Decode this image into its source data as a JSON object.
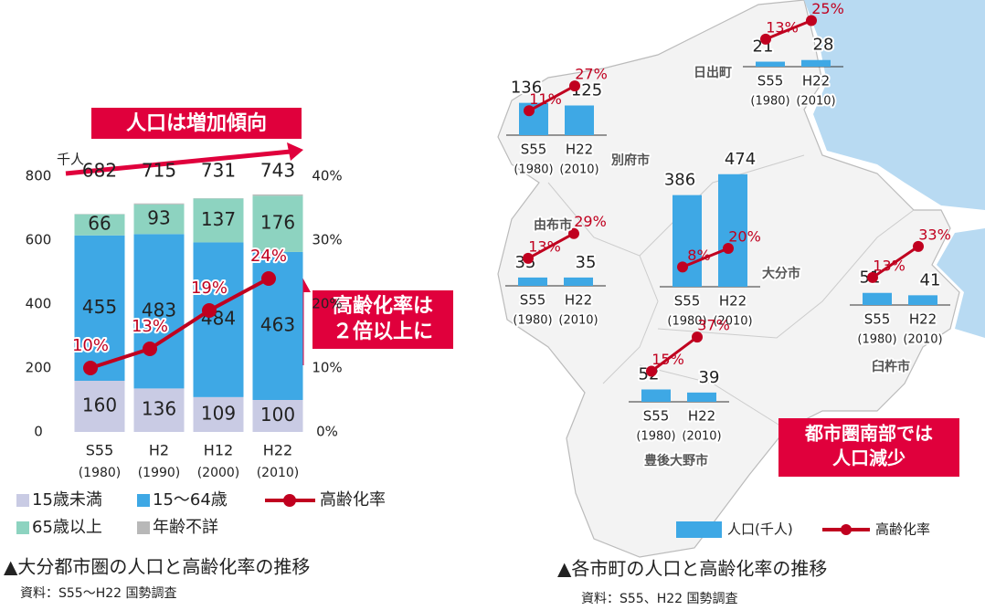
{
  "chart_data": [
    {
      "type": "bar",
      "unit_label": "千人",
      "categories": [
        "S55",
        "H2",
        "H12",
        "H22"
      ],
      "category_years": [
        "(1980)",
        "(1990)",
        "(2000)",
        "(2010)"
      ],
      "series": [
        {
          "name": "15歳未満",
          "color": "#c9cbe4",
          "values": [
            160,
            136,
            109,
            100
          ],
          "show_labels": true
        },
        {
          "name": "15〜64歳",
          "color": "#3ea8e5",
          "values": [
            455,
            483,
            484,
            463
          ],
          "show_labels": true
        },
        {
          "name": "65歳以上",
          "color": "#8dd3c0",
          "values": [
            66,
            93,
            137,
            176
          ],
          "show_labels": true
        },
        {
          "name": "年齢不詳",
          "color": "#b8b8b8",
          "values": [
            1,
            3,
            1,
            4
          ],
          "show_labels": false
        },
        {
          "name": "高齢化率",
          "color": "#c0001f",
          "type": "line",
          "axis": "y2",
          "values": [
            10,
            13,
            19,
            24
          ],
          "value_labels": [
            "10%",
            "13%",
            "19%",
            "24%"
          ]
        }
      ],
      "totals": [
        682,
        715,
        731,
        743
      ],
      "ylim": [
        0,
        800
      ],
      "yticks": [
        0,
        200,
        400,
        600,
        800
      ],
      "y2lim": [
        0,
        40
      ],
      "y2ticks": [
        {
          "value": 0,
          "label": "0%"
        },
        {
          "value": 10,
          "label": "10%"
        },
        {
          "value": 20,
          "label": "20%"
        },
        {
          "value": 30,
          "label": "30%"
        },
        {
          "value": 40,
          "label": "40%"
        }
      ],
      "annotations": [
        "人口は増加傾向",
        "高齢化率は",
        "２倍以上に"
      ],
      "caption": "▲大分都市圏の人口と高齢化率の推移",
      "source": "資料：S55〜H22 国勢調査"
    },
    {
      "type": "map",
      "periods": [
        "S55",
        "H22"
      ],
      "years": [
        "(1980)",
        "(2010)"
      ],
      "bar_color": "#3ea8e5",
      "line_color": "#c0001f",
      "towns": [
        {
          "name": "日出町",
          "population": [
            21,
            28
          ],
          "rate": [
            13,
            25
          ],
          "rate_labels": [
            "13%",
            "25%"
          ]
        },
        {
          "name": "別府市",
          "population": [
            136,
            125
          ],
          "rate": [
            11,
            27
          ],
          "rate_labels": [
            "11%",
            "27%"
          ]
        },
        {
          "name": "由布市",
          "population": [
            35,
            35
          ],
          "rate": [
            13,
            29
          ],
          "rate_labels": [
            "13%",
            "29%"
          ]
        },
        {
          "name": "大分市",
          "population": [
            386,
            474
          ],
          "rate": [
            8,
            20
          ],
          "rate_labels": [
            "8%",
            "20%"
          ]
        },
        {
          "name": "臼杵市",
          "population": [
            51,
            41
          ],
          "rate": [
            13,
            33
          ],
          "rate_labels": [
            "13%",
            "33%"
          ]
        },
        {
          "name": "豊後大野市",
          "population": [
            52,
            39
          ],
          "rate": [
            15,
            37
          ],
          "rate_labels": [
            "15%",
            "37%"
          ]
        }
      ],
      "legend": [
        "人口(千人)",
        "高齢化率"
      ],
      "annotations": [
        "都市圏南部では",
        "人口減少"
      ],
      "caption": "▲各市町の人口と高齢化率の推移",
      "source": "資料：S55、H22 国勢調査"
    }
  ]
}
